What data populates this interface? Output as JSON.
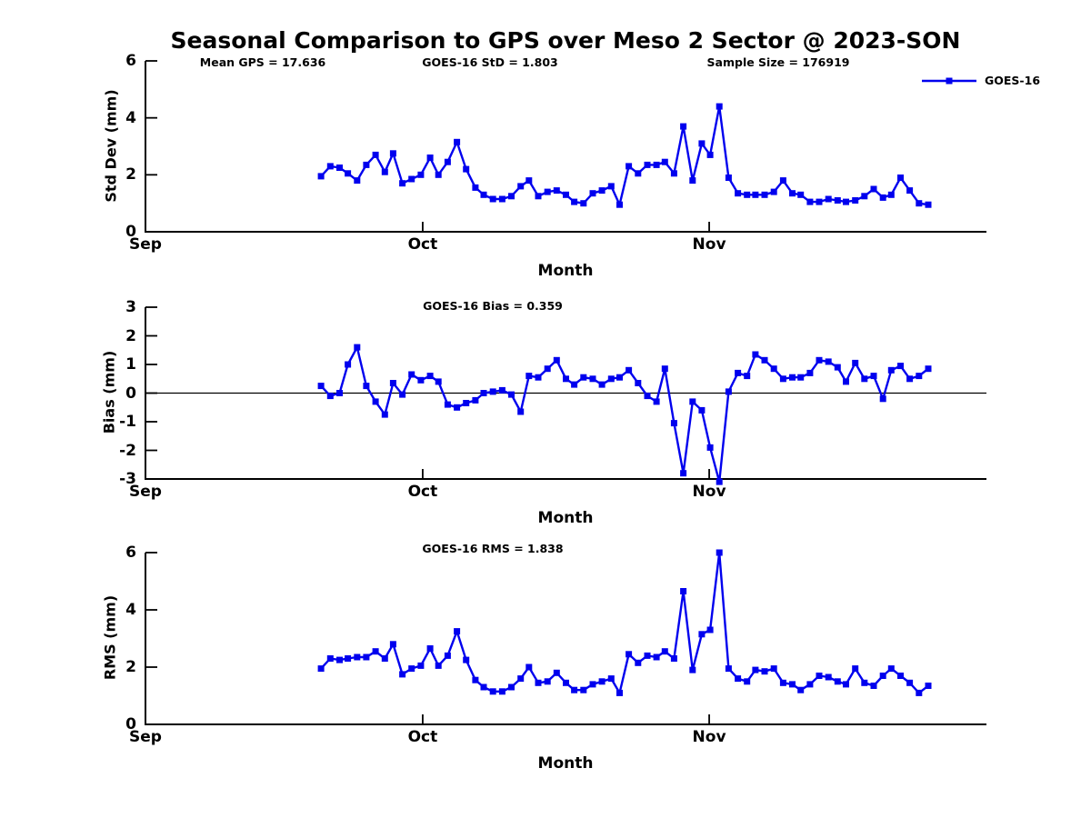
{
  "title": "Seasonal Comparison to GPS over Meso 2 Sector @ 2023-SON",
  "legend": {
    "label": "GOES-16",
    "color": "#0000ee"
  },
  "chart_data": [
    {
      "type": "line",
      "annotations": [
        "Mean GPS = 17.636",
        "GOES-16 StD = 1.803",
        "Sample Size = 176919"
      ],
      "ylabel": "Std Dev (mm)",
      "xlabel": "Month",
      "ylim": [
        0,
        6
      ],
      "yticks": [
        0,
        2,
        4,
        6
      ],
      "xtick_labels": [
        "Sep",
        "Oct",
        "Nov"
      ],
      "xtick_days": [
        0,
        30,
        61
      ],
      "xlim_days": [
        0,
        91
      ],
      "grid": false,
      "zero_line": false,
      "legend_position": "upper right",
      "series": [
        {
          "name": "GOES-16",
          "color": "#0000ee",
          "marker": "square",
          "x_days": [
            19,
            20,
            21,
            21.9,
            22.9,
            23.9,
            24.9,
            25.9,
            26.8,
            27.8,
            28.8,
            29.8,
            30.8,
            31.7,
            32.7,
            33.7,
            34.7,
            35.7,
            36.6,
            37.6,
            38.6,
            39.6,
            40.6,
            41.5,
            42.5,
            43.5,
            44.5,
            45.5,
            46.4,
            47.4,
            48.4,
            49.4,
            50.4,
            51.3,
            52.3,
            53.3,
            54.3,
            55.3,
            56.2,
            57.2,
            58.2,
            59.2,
            60.2,
            61.1,
            62.1,
            63.1,
            64.1,
            65.1,
            66,
            67,
            68,
            69,
            70,
            70.9,
            71.9,
            72.9,
            73.9,
            74.9,
            75.8,
            76.8,
            77.8,
            78.8,
            79.8,
            80.7,
            81.7,
            82.7,
            83.7,
            84.7
          ],
          "values": [
            1.95,
            2.3,
            2.25,
            2.05,
            1.8,
            2.35,
            2.7,
            2.1,
            2.75,
            1.7,
            1.85,
            2,
            2.6,
            2,
            2.45,
            3.15,
            2.2,
            1.55,
            1.3,
            1.15,
            1.15,
            1.25,
            1.6,
            1.8,
            1.25,
            1.4,
            1.45,
            1.3,
            1.05,
            1,
            1.35,
            1.45,
            1.6,
            0.95,
            2.3,
            2.05,
            2.35,
            2.35,
            2.45,
            2.05,
            3.7,
            1.8,
            3.1,
            2.7,
            4.4,
            1.9,
            1.35,
            1.3,
            1.3,
            1.3,
            1.4,
            1.8,
            1.35,
            1.3,
            1.05,
            1.05,
            1.15,
            1.1,
            1.05,
            1.1,
            1.25,
            1.5,
            1.2,
            1.3,
            1.9,
            1.45,
            1,
            0.95
          ]
        }
      ]
    },
    {
      "type": "line",
      "annotations": [
        "GOES-16 Bias = 0.359"
      ],
      "ylabel": "Bias (mm)",
      "xlabel": "Month",
      "ylim": [
        -3,
        3
      ],
      "yticks": [
        -3,
        -2,
        -1,
        0,
        1,
        2,
        3
      ],
      "xtick_labels": [
        "Sep",
        "Oct",
        "Nov"
      ],
      "xtick_days": [
        0,
        30,
        61
      ],
      "xlim_days": [
        0,
        91
      ],
      "grid": false,
      "zero_line": true,
      "series": [
        {
          "name": "GOES-16",
          "color": "#0000ee",
          "marker": "square",
          "x_days": [
            19,
            20,
            21,
            21.9,
            22.9,
            23.9,
            24.9,
            25.9,
            26.8,
            27.8,
            28.8,
            29.8,
            30.8,
            31.7,
            32.7,
            33.7,
            34.7,
            35.7,
            36.6,
            37.6,
            38.6,
            39.6,
            40.6,
            41.5,
            42.5,
            43.5,
            44.5,
            45.5,
            46.4,
            47.4,
            48.4,
            49.4,
            50.4,
            51.3,
            52.3,
            53.3,
            54.3,
            55.3,
            56.2,
            57.2,
            58.2,
            59.2,
            60.2,
            61.1,
            62.1,
            63.1,
            64.1,
            65.1,
            66,
            67,
            68,
            69,
            70,
            70.9,
            71.9,
            72.9,
            73.9,
            74.9,
            75.8,
            76.8,
            77.8,
            78.8,
            79.8,
            80.7,
            81.7,
            82.7,
            83.7,
            84.7
          ],
          "values": [
            0.25,
            -0.1,
            0,
            1,
            1.6,
            0.25,
            -0.3,
            -0.75,
            0.35,
            -0.05,
            0.65,
            0.45,
            0.6,
            0.4,
            -0.4,
            -0.5,
            -0.35,
            -0.25,
            0,
            0.05,
            0.1,
            -0.05,
            -0.65,
            0.6,
            0.55,
            0.85,
            1.15,
            0.5,
            0.3,
            0.55,
            0.5,
            0.3,
            0.5,
            0.55,
            0.8,
            0.35,
            -0.1,
            -0.3,
            0.85,
            -1.05,
            -2.8,
            -0.3,
            -0.6,
            -1.9,
            -3.1,
            0.05,
            0.7,
            0.6,
            1.35,
            1.15,
            0.85,
            0.5,
            0.55,
            0.55,
            0.7,
            1.15,
            1.1,
            0.9,
            0.4,
            1.05,
            0.5,
            0.6,
            -0.2,
            0.8,
            0.95,
            0.5,
            0.6,
            0.85
          ]
        }
      ]
    },
    {
      "type": "line",
      "annotations": [
        "GOES-16 RMS = 1.838"
      ],
      "ylabel": "RMS (mm)",
      "xlabel": "Month",
      "ylim": [
        0,
        6
      ],
      "yticks": [
        0,
        2,
        4,
        6
      ],
      "xtick_labels": [
        "Sep",
        "Oct",
        "Nov"
      ],
      "xtick_days": [
        0,
        30,
        61
      ],
      "xlim_days": [
        0,
        91
      ],
      "grid": false,
      "zero_line": false,
      "series": [
        {
          "name": "GOES-16",
          "color": "#0000ee",
          "marker": "square",
          "x_days": [
            19,
            20,
            21,
            21.9,
            22.9,
            23.9,
            24.9,
            25.9,
            26.8,
            27.8,
            28.8,
            29.8,
            30.8,
            31.7,
            32.7,
            33.7,
            34.7,
            35.7,
            36.6,
            37.6,
            38.6,
            39.6,
            40.6,
            41.5,
            42.5,
            43.5,
            44.5,
            45.5,
            46.4,
            47.4,
            48.4,
            49.4,
            50.4,
            51.3,
            52.3,
            53.3,
            54.3,
            55.3,
            56.2,
            57.2,
            58.2,
            59.2,
            60.2,
            61.1,
            62.1,
            63.1,
            64.1,
            65.1,
            66,
            67,
            68,
            69,
            70,
            70.9,
            71.9,
            72.9,
            73.9,
            74.9,
            75.8,
            76.8,
            77.8,
            78.8,
            79.8,
            80.7,
            81.7,
            82.7,
            83.7,
            84.7
          ],
          "values": [
            1.95,
            2.3,
            2.25,
            2.3,
            2.35,
            2.35,
            2.55,
            2.3,
            2.8,
            1.75,
            1.95,
            2.05,
            2.65,
            2.05,
            2.4,
            3.25,
            2.25,
            1.55,
            1.3,
            1.15,
            1.15,
            1.3,
            1.6,
            2,
            1.45,
            1.5,
            1.8,
            1.45,
            1.2,
            1.2,
            1.4,
            1.5,
            1.6,
            1.1,
            2.45,
            2.15,
            2.4,
            2.35,
            2.55,
            2.3,
            4.65,
            1.9,
            3.15,
            3.3,
            6,
            1.95,
            1.6,
            1.5,
            1.9,
            1.85,
            1.95,
            1.45,
            1.4,
            1.2,
            1.4,
            1.7,
            1.65,
            1.5,
            1.4,
            1.95,
            1.45,
            1.35,
            1.7,
            1.95,
            1.7,
            1.45,
            1.1,
            1.35
          ]
        }
      ]
    }
  ]
}
